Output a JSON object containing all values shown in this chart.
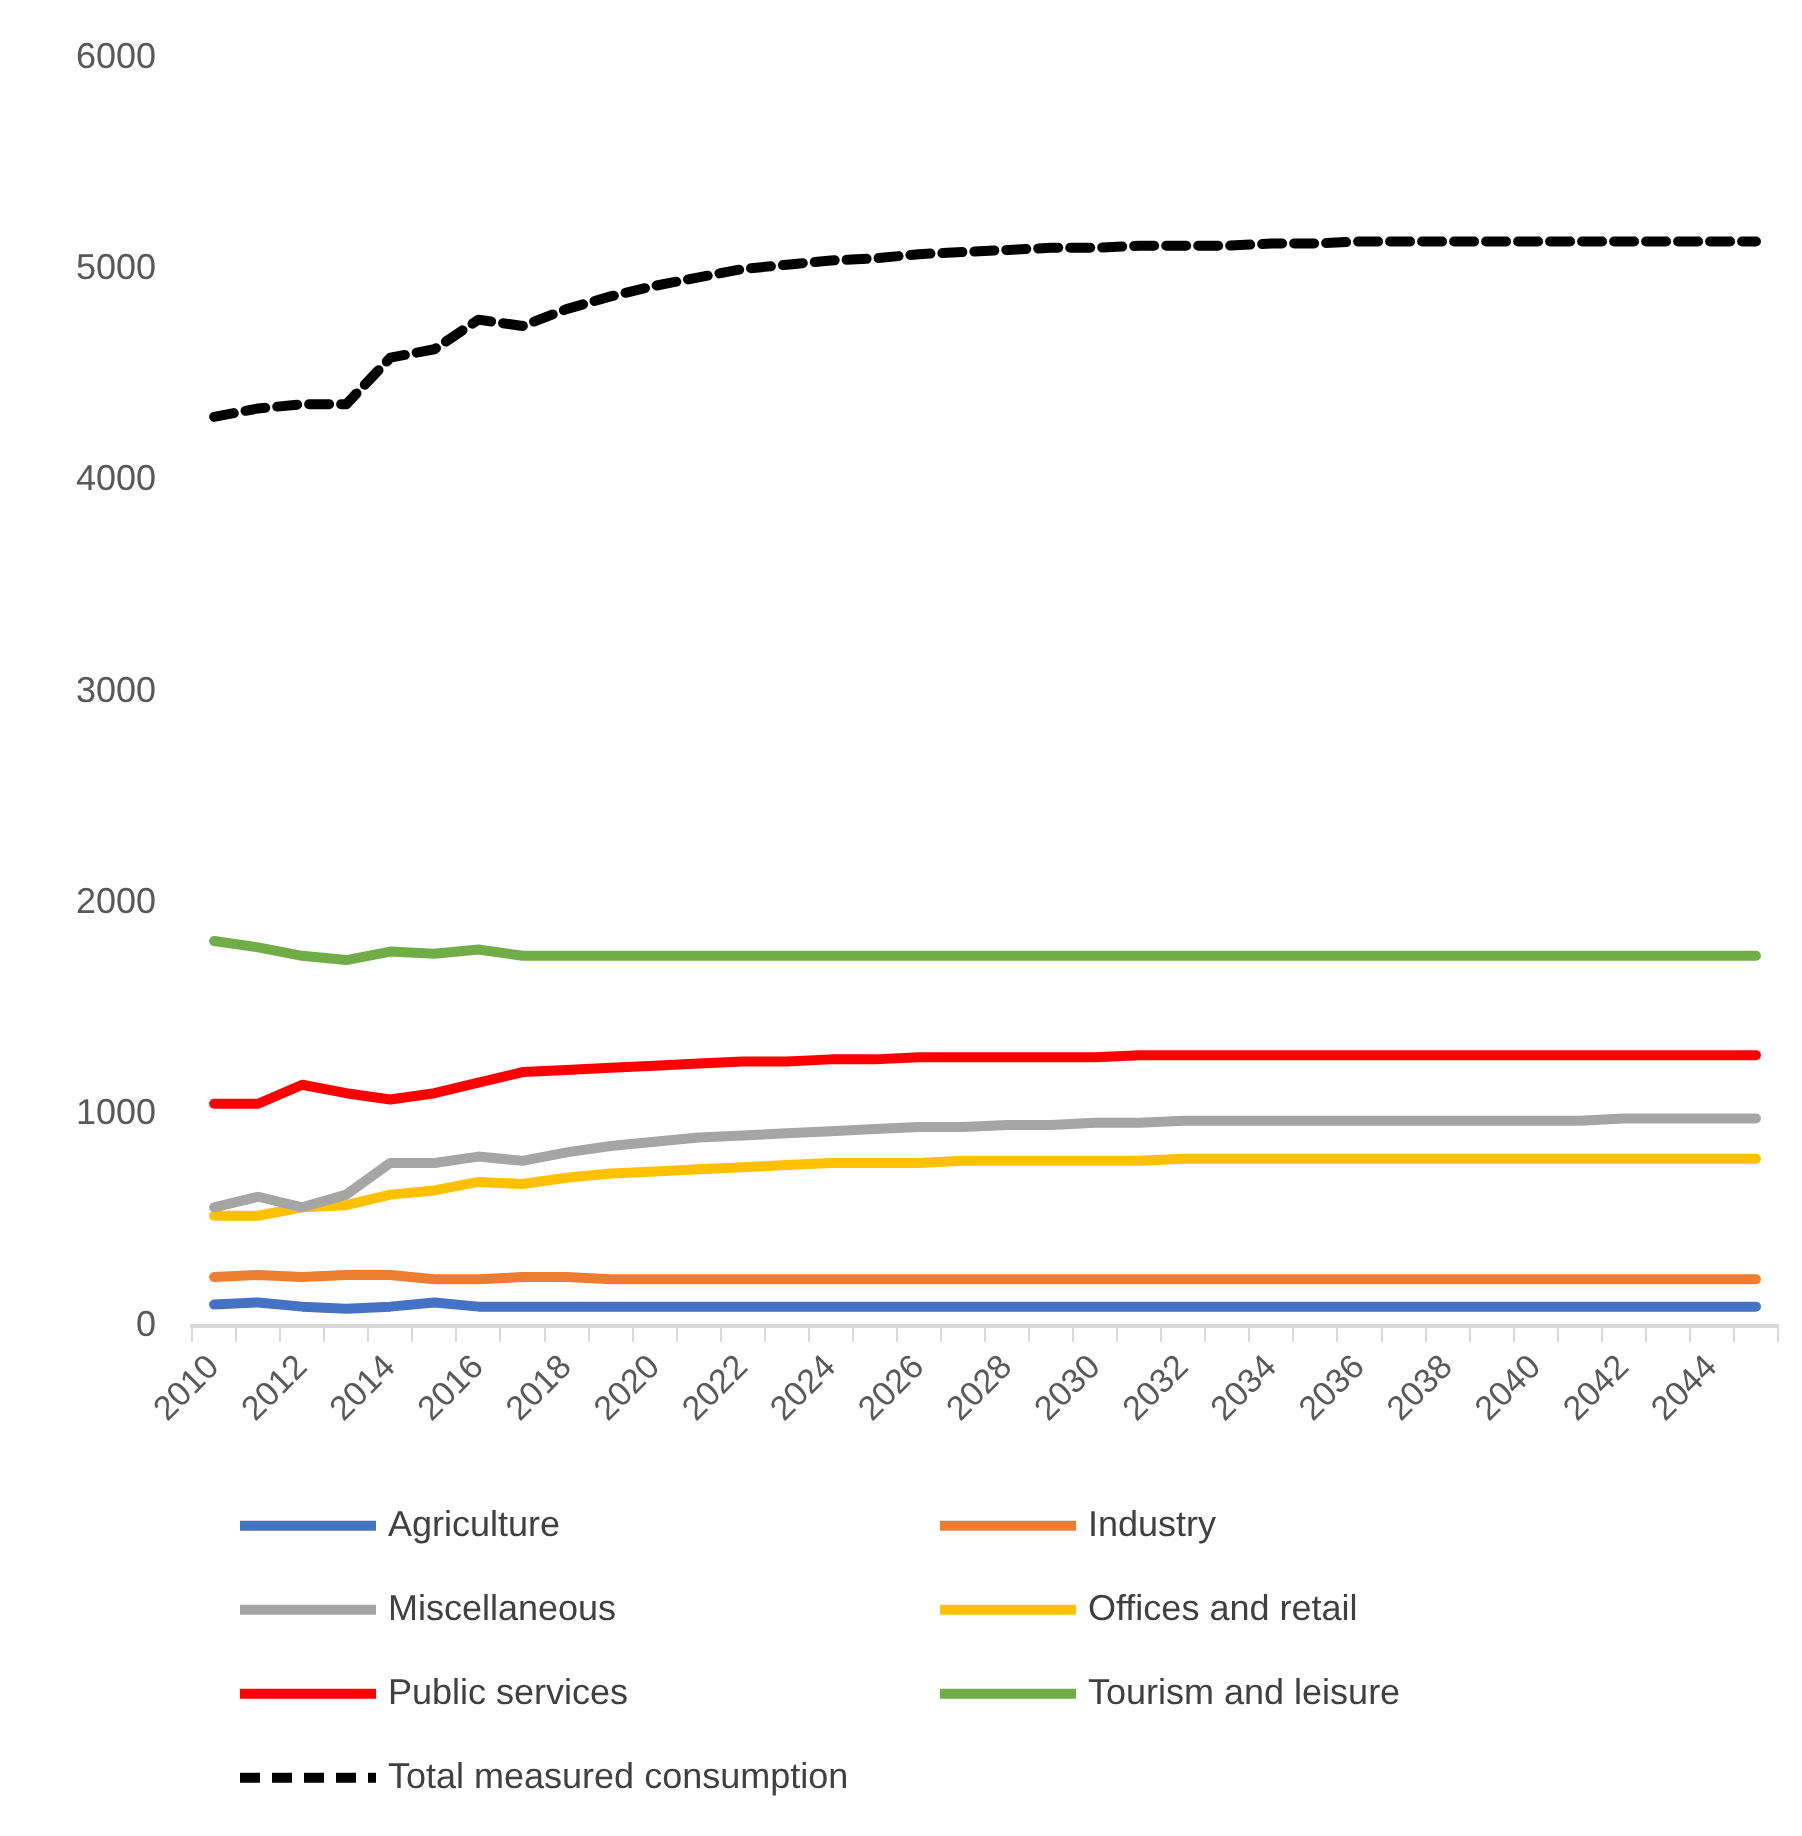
{
  "chart_data": {
    "type": "line",
    "categories": [
      "2010",
      null,
      "2012",
      null,
      "2014",
      null,
      "2016",
      null,
      "2018",
      null,
      "2020",
      null,
      "2022",
      null,
      "2024",
      null,
      "2026",
      null,
      "2028",
      null,
      "2030",
      null,
      "2032",
      null,
      "2034",
      null,
      "2036",
      null,
      "2038",
      null,
      "2040",
      null,
      "2042",
      null,
      "2044",
      null
    ],
    "series": [
      {
        "name": "Agriculture",
        "color": "#4472c4",
        "values": [
          100,
          110,
          90,
          80,
          90,
          110,
          90,
          90,
          90,
          90,
          90,
          90,
          90,
          90,
          90,
          90,
          90,
          90,
          90,
          90,
          90,
          90,
          90,
          90,
          90,
          90,
          90,
          90,
          90,
          90,
          90,
          90,
          90,
          90,
          90,
          90
        ]
      },
      {
        "name": "Industry",
        "color": "#ed7d31",
        "values": [
          230,
          240,
          230,
          240,
          240,
          220,
          220,
          230,
          230,
          220,
          220,
          220,
          220,
          220,
          220,
          220,
          220,
          220,
          220,
          220,
          220,
          220,
          220,
          220,
          220,
          220,
          220,
          220,
          220,
          220,
          220,
          220,
          220,
          220,
          220,
          220
        ]
      },
      {
        "name": "Miscellaneous",
        "color": "#a5a5a5",
        "values": [
          560,
          610,
          560,
          620,
          770,
          770,
          800,
          780,
          820,
          850,
          870,
          890,
          900,
          910,
          920,
          930,
          940,
          940,
          950,
          950,
          960,
          960,
          970,
          970,
          970,
          970,
          970,
          970,
          970,
          970,
          970,
          970,
          980,
          980,
          980,
          980
        ]
      },
      {
        "name": "Offices and retail",
        "color": "#ffc000",
        "values": [
          520,
          520,
          560,
          570,
          620,
          640,
          680,
          670,
          700,
          720,
          730,
          740,
          750,
          760,
          770,
          770,
          770,
          780,
          780,
          780,
          780,
          780,
          790,
          790,
          790,
          790,
          790,
          790,
          790,
          790,
          790,
          790,
          790,
          790,
          790,
          790
        ]
      },
      {
        "name": "Public services",
        "color": "#ff0000",
        "values": [
          1050,
          1050,
          1140,
          1100,
          1070,
          1100,
          1150,
          1200,
          1210,
          1220,
          1230,
          1240,
          1250,
          1250,
          1260,
          1260,
          1270,
          1270,
          1270,
          1270,
          1270,
          1280,
          1280,
          1280,
          1280,
          1280,
          1280,
          1280,
          1280,
          1280,
          1280,
          1280,
          1280,
          1280,
          1280,
          1280
        ]
      },
      {
        "name": "Tourism and leisure",
        "color": "#70ad47",
        "values": [
          1820,
          1790,
          1750,
          1730,
          1770,
          1760,
          1780,
          1750,
          1750,
          1750,
          1750,
          1750,
          1750,
          1750,
          1750,
          1750,
          1750,
          1750,
          1750,
          1750,
          1750,
          1750,
          1750,
          1750,
          1750,
          1750,
          1750,
          1750,
          1750,
          1750,
          1750,
          1750,
          1750,
          1750,
          1750,
          1750
        ]
      },
      {
        "name": "Total measured consumption",
        "color": "#000000",
        "line_style": "dashed",
        "values": [
          4300,
          4340,
          4360,
          4360,
          4580,
          4620,
          4760,
          4730,
          4810,
          4870,
          4920,
          4960,
          5000,
          5020,
          5040,
          5050,
          5070,
          5080,
          5090,
          5100,
          5100,
          5110,
          5110,
          5110,
          5120,
          5120,
          5130,
          5130,
          5130,
          5130,
          5130,
          5130,
          5130,
          5130,
          5130,
          5130
        ]
      }
    ],
    "ylim": [
      0,
      6000
    ],
    "yticks": [
      0,
      1000,
      2000,
      3000,
      4000,
      5000,
      6000
    ],
    "grid": false,
    "legend": "bottom",
    "marker": "none",
    "line_style": "solid"
  }
}
